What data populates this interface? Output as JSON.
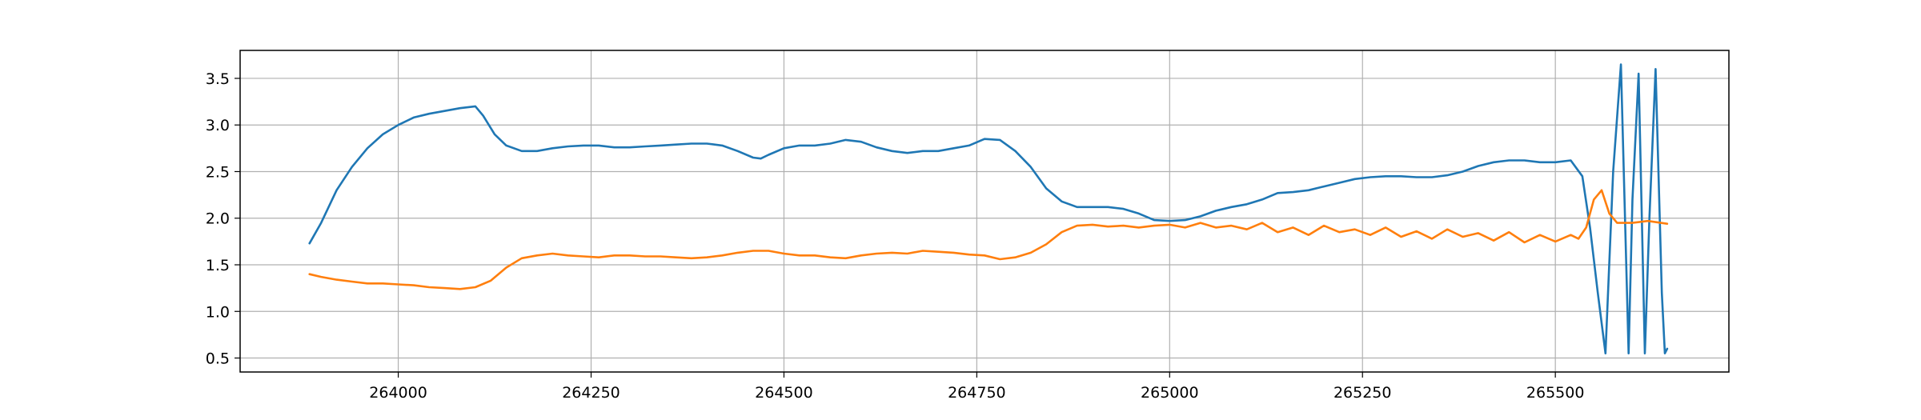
{
  "chart_data": {
    "type": "line",
    "title": "",
    "xlabel": "",
    "ylabel": "",
    "xlim": [
      263795,
      265725
    ],
    "ylim": [
      0.35,
      3.8
    ],
    "grid": true,
    "x_ticks": [
      {
        "value": 264000,
        "label": "264000"
      },
      {
        "value": 264250,
        "label": "264250"
      },
      {
        "value": 264500,
        "label": "264500"
      },
      {
        "value": 264750,
        "label": "264750"
      },
      {
        "value": 265000,
        "label": "265000"
      },
      {
        "value": 265250,
        "label": "265250"
      },
      {
        "value": 265500,
        "label": "265500"
      }
    ],
    "y_ticks": [
      {
        "value": 0.5,
        "label": "0.5"
      },
      {
        "value": 1.0,
        "label": "1.0"
      },
      {
        "value": 1.5,
        "label": "1.5"
      },
      {
        "value": 2.0,
        "label": "2.0"
      },
      {
        "value": 2.5,
        "label": "2.5"
      },
      {
        "value": 3.0,
        "label": "3.0"
      },
      {
        "value": 3.5,
        "label": "3.5"
      }
    ],
    "series": [
      {
        "color": "#1f77b4",
        "x": [
          263885,
          263900,
          263920,
          263940,
          263960,
          263980,
          264000,
          264020,
          264040,
          264060,
          264080,
          264100,
          264110,
          264125,
          264140,
          264160,
          264180,
          264200,
          264220,
          264240,
          264260,
          264280,
          264300,
          264320,
          264340,
          264360,
          264380,
          264400,
          264420,
          264440,
          264460,
          264470,
          264480,
          264500,
          264520,
          264540,
          264560,
          264580,
          264600,
          264620,
          264640,
          264660,
          264680,
          264700,
          264720,
          264740,
          264760,
          264780,
          264800,
          264820,
          264840,
          264860,
          264880,
          264900,
          264920,
          264940,
          264960,
          264980,
          265000,
          265020,
          265040,
          265060,
          265080,
          265100,
          265120,
          265140,
          265160,
          265180,
          265200,
          265220,
          265240,
          265260,
          265280,
          265300,
          265320,
          265340,
          265360,
          265380,
          265400,
          265420,
          265440,
          265460,
          265480,
          265500,
          265520,
          265535,
          265545,
          265555,
          265565,
          265575,
          265585,
          265595,
          265600,
          265608,
          265616,
          265622,
          265630,
          265638,
          265642,
          265645
        ],
        "values": [
          1.73,
          1.95,
          2.3,
          2.55,
          2.75,
          2.9,
          3.0,
          3.08,
          3.12,
          3.15,
          3.18,
          3.2,
          3.1,
          2.9,
          2.78,
          2.72,
          2.72,
          2.75,
          2.77,
          2.78,
          2.78,
          2.76,
          2.76,
          2.77,
          2.78,
          2.79,
          2.8,
          2.8,
          2.78,
          2.72,
          2.65,
          2.64,
          2.68,
          2.75,
          2.78,
          2.78,
          2.8,
          2.84,
          2.82,
          2.76,
          2.72,
          2.7,
          2.72,
          2.72,
          2.75,
          2.78,
          2.85,
          2.84,
          2.72,
          2.55,
          2.32,
          2.18,
          2.12,
          2.12,
          2.12,
          2.1,
          2.05,
          1.98,
          1.97,
          1.98,
          2.02,
          2.08,
          2.12,
          2.15,
          2.2,
          2.27,
          2.28,
          2.3,
          2.34,
          2.38,
          2.42,
          2.44,
          2.45,
          2.45,
          2.44,
          2.44,
          2.46,
          2.5,
          2.56,
          2.6,
          2.62,
          2.62,
          2.6,
          2.6,
          2.62,
          2.45,
          1.9,
          1.2,
          0.55,
          2.5,
          3.65,
          0.55,
          2.2,
          3.55,
          0.55,
          2.0,
          3.6,
          1.2,
          0.55,
          0.6
        ]
      },
      {
        "color": "#ff7f0e",
        "x": [
          263885,
          263900,
          263920,
          263940,
          263960,
          263980,
          264000,
          264020,
          264040,
          264060,
          264080,
          264100,
          264120,
          264140,
          264160,
          264180,
          264200,
          264220,
          264240,
          264260,
          264280,
          264300,
          264320,
          264340,
          264360,
          264380,
          264400,
          264420,
          264440,
          264460,
          264480,
          264500,
          264520,
          264540,
          264560,
          264580,
          264600,
          264620,
          264640,
          264660,
          264680,
          264700,
          264720,
          264740,
          264760,
          264780,
          264800,
          264820,
          264840,
          264860,
          264880,
          264900,
          264920,
          264940,
          264960,
          264980,
          265000,
          265020,
          265040,
          265060,
          265080,
          265100,
          265120,
          265140,
          265160,
          265180,
          265200,
          265220,
          265240,
          265260,
          265280,
          265300,
          265320,
          265340,
          265360,
          265380,
          265400,
          265420,
          265440,
          265460,
          265480,
          265500,
          265520,
          265530,
          265540,
          265550,
          265560,
          265570,
          265580,
          265600,
          265620,
          265645
        ],
        "values": [
          1.4,
          1.37,
          1.34,
          1.32,
          1.3,
          1.3,
          1.29,
          1.28,
          1.26,
          1.25,
          1.24,
          1.26,
          1.33,
          1.47,
          1.57,
          1.6,
          1.62,
          1.6,
          1.59,
          1.58,
          1.6,
          1.6,
          1.59,
          1.59,
          1.58,
          1.57,
          1.58,
          1.6,
          1.63,
          1.65,
          1.65,
          1.62,
          1.6,
          1.6,
          1.58,
          1.57,
          1.6,
          1.62,
          1.63,
          1.62,
          1.65,
          1.64,
          1.63,
          1.61,
          1.6,
          1.56,
          1.58,
          1.63,
          1.72,
          1.85,
          1.92,
          1.93,
          1.91,
          1.92,
          1.9,
          1.92,
          1.93,
          1.9,
          1.95,
          1.9,
          1.92,
          1.88,
          1.95,
          1.85,
          1.9,
          1.82,
          1.92,
          1.85,
          1.88,
          1.82,
          1.9,
          1.8,
          1.86,
          1.78,
          1.88,
          1.8,
          1.84,
          1.76,
          1.85,
          1.74,
          1.82,
          1.75,
          1.82,
          1.78,
          1.9,
          2.2,
          2.3,
          2.05,
          1.95,
          1.95,
          1.97,
          1.94
        ]
      }
    ]
  }
}
